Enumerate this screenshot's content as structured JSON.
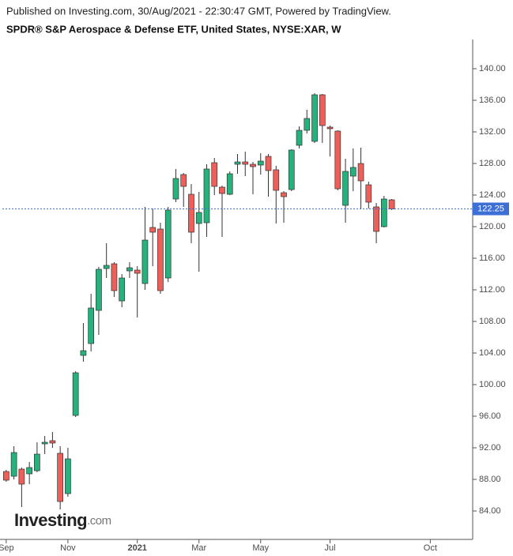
{
  "header": "Published on Investing.com, 30/Aug/2021 - 22:30:47 GMT, Powered by TradingView.",
  "logo": {
    "name": "Investing",
    "suffix": ".com"
  },
  "chart_data": {
    "type": "candlestick",
    "title": "SPDR® S&P Aerospace & Defense ETF, United States, NYSE:XAR, W",
    "categories": [
      "Sep",
      null,
      null,
      null,
      null,
      null,
      null,
      null,
      "Nov",
      null,
      null,
      null,
      null,
      null,
      null,
      null,
      null,
      "2021",
      null,
      null,
      null,
      null,
      null,
      null,
      null,
      "Mar",
      null,
      null,
      null,
      null,
      null,
      null,
      null,
      "May",
      null,
      null,
      null,
      null,
      null,
      null,
      null,
      null,
      "Jul",
      null,
      null,
      null,
      null,
      null,
      null,
      null,
      null,
      null,
      null,
      null,
      null,
      "Oct",
      null,
      null,
      null,
      null,
      null
    ],
    "open": [
      89.0,
      88.4,
      89.3,
      88.7,
      89.1,
      92.5,
      92.9,
      91.3,
      86.2,
      96.1,
      103.7,
      105.2,
      109.4,
      114.7,
      115.3,
      110.6,
      114.4,
      114.5,
      112.8,
      119.9,
      119.7,
      113.5,
      123.5,
      126.6,
      124.1,
      120.4,
      120.5,
      128.1,
      125.0,
      124.1,
      127.9,
      128.2,
      127.9,
      127.8,
      128.9,
      127.2,
      124.3,
      124.7,
      130.3,
      132.2,
      130.8,
      136.7,
      132.6,
      132.1,
      122.7,
      126.4,
      128.0,
      125.3,
      122.5,
      120.0,
      123.4,
      null,
      null,
      null,
      null,
      null,
      null,
      null,
      null,
      null,
      null
    ],
    "high": [
      89.2,
      92.2,
      89.5,
      90.2,
      92.7,
      93.5,
      94.0,
      92.2,
      92.0,
      101.7,
      107.8,
      111.5,
      114.9,
      117.9,
      115.5,
      114.0,
      115.5,
      115.0,
      122.5,
      122.3,
      120.5,
      122.5,
      127.3,
      126.8,
      125.4,
      124.4,
      127.9,
      128.7,
      125.2,
      127.0,
      129.2,
      129.5,
      128.2,
      129.3,
      129.2,
      127.7,
      124.5,
      129.8,
      132.7,
      134.8,
      136.9,
      136.8,
      132.8,
      132.2,
      128.6,
      129.9,
      130.0,
      125.7,
      123.0,
      123.9,
      123.5,
      null,
      null,
      null,
      null,
      null,
      null,
      null,
      null,
      null,
      null
    ],
    "low": [
      87.7,
      88.0,
      84.5,
      87.4,
      88.9,
      91.2,
      92.0,
      84.2,
      85.8,
      95.9,
      102.9,
      104.2,
      106.3,
      113.5,
      111.1,
      109.8,
      113.5,
      108.5,
      112.0,
      115.0,
      111.5,
      113.0,
      123.1,
      122.5,
      117.9,
      114.3,
      118.7,
      124.0,
      118.7,
      124.0,
      126.7,
      126.4,
      124.1,
      126.6,
      123.8,
      120.4,
      120.5,
      124.5,
      129.9,
      131.8,
      130.6,
      130.6,
      128.9,
      124.6,
      120.5,
      124.5,
      122.3,
      122.3,
      117.9,
      119.9,
      122.1,
      null,
      null,
      null,
      null,
      null,
      null,
      null,
      null,
      null,
      null
    ],
    "close": [
      87.9,
      91.4,
      87.4,
      89.5,
      91.2,
      92.7,
      92.6,
      85.2,
      90.6,
      101.5,
      104.3,
      109.7,
      114.6,
      115.1,
      111.9,
      113.5,
      114.8,
      114.1,
      118.3,
      119.3,
      111.9,
      122.1,
      126.1,
      125.1,
      119.3,
      121.8,
      127.3,
      125.1,
      124.2,
      126.7,
      128.2,
      127.9,
      127.6,
      128.3,
      127.1,
      124.6,
      123.8,
      129.7,
      132.2,
      133.7,
      136.7,
      132.8,
      132.4,
      124.8,
      127.0,
      127.5,
      125.8,
      123.1,
      119.4,
      123.5,
      122.25,
      null,
      null,
      null,
      null,
      null,
      null,
      null,
      null,
      null,
      null
    ],
    "up_color": "#26b27c",
    "down_color": "#ef5f5a",
    "last_value": 122.25,
    "last_color": "#3d6fd4",
    "ylim": [
      80.4,
      143.7
    ],
    "yticks": [
      {
        "value": 84,
        "label": "84.00"
      },
      {
        "value": 88,
        "label": "88.00"
      },
      {
        "value": 92,
        "label": "92.00"
      },
      {
        "value": 96,
        "label": "96.00"
      },
      {
        "value": 100,
        "label": "100.00"
      },
      {
        "value": 104,
        "label": "104.00"
      },
      {
        "value": 108,
        "label": "108.00"
      },
      {
        "value": 112,
        "label": "112.00"
      },
      {
        "value": 116,
        "label": "116.00"
      },
      {
        "value": 120,
        "label": "120.00"
      },
      {
        "value": 124,
        "label": "124.00"
      },
      {
        "value": 128,
        "label": "128.00"
      },
      {
        "value": 132,
        "label": "132.00"
      },
      {
        "value": 136,
        "label": "136.00"
      },
      {
        "value": 140,
        "label": "140.00"
      }
    ],
    "grid": false
  }
}
